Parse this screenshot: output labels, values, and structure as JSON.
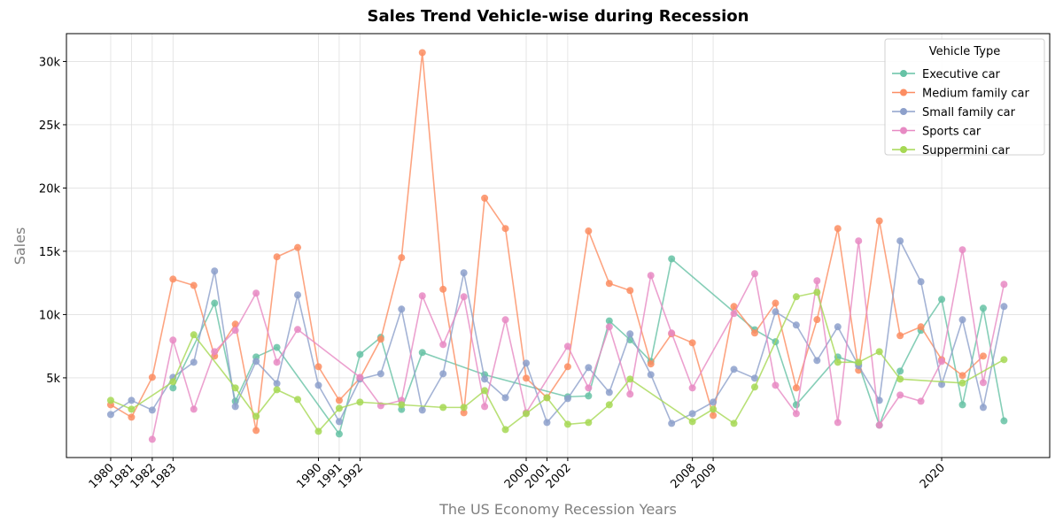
{
  "chart_data": {
    "type": "line",
    "title": "Sales Trend Vehicle-wise during Recession",
    "x_label": "The US Economy Recession Years",
    "y_label": "Sales",
    "xlim": [
      1977.87,
      2025.2
    ],
    "ylim": [
      -1300,
      32200
    ],
    "xticks": [
      1980,
      1981,
      1982,
      1983,
      1990,
      1991,
      1992,
      2000,
      2001,
      2002,
      2008,
      2009,
      2020
    ],
    "yticks": [
      {
        "value": 5000,
        "label": "5k"
      },
      {
        "value": 10000,
        "label": "10k"
      },
      {
        "value": 15000,
        "label": "15k"
      },
      {
        "value": 20000,
        "label": "20k"
      },
      {
        "value": 25000,
        "label": "25k"
      },
      {
        "value": 30000,
        "label": "30k"
      }
    ],
    "grid": true,
    "legend_title": "Vehicle Type",
    "legend_position": "upper-right",
    "series": [
      {
        "name": "Executive car",
        "color": "#66c2a5",
        "x": [
          1983,
          1985,
          1986,
          1987,
          1988,
          1991,
          1992,
          1993,
          1994,
          1995,
          1998,
          2002,
          2003,
          2004,
          2005,
          2006,
          2007,
          2011,
          2012,
          2013,
          2015,
          2016,
          2017,
          2018,
          2019,
          2020,
          2021,
          2022,
          2023
        ],
        "values": [
          4200,
          10900,
          3150,
          6650,
          7400,
          560,
          6850,
          8200,
          2500,
          7000,
          5250,
          3500,
          3570,
          9500,
          8000,
          6300,
          14400,
          8800,
          7850,
          2870,
          6650,
          6100,
          1260,
          5530,
          8750,
          11200,
          2870,
          10500,
          1600
        ]
      },
      {
        "name": "Medium family car",
        "color": "#fc8d62",
        "x": [
          1980,
          1981,
          1982,
          1983,
          1984,
          1985,
          1986,
          1987,
          1988,
          1989,
          1990,
          1991,
          1992,
          1993,
          1994,
          1995,
          1996,
          1997,
          1998,
          1999,
          2000,
          2001,
          2002,
          2003,
          2004,
          2005,
          2006,
          2007,
          2008,
          2009,
          2010,
          2011,
          2012,
          2013,
          2014,
          2015,
          2016,
          2017,
          2018,
          2019,
          2020,
          2021,
          2022
        ],
        "values": [
          2870,
          1890,
          5040,
          12800,
          12300,
          6720,
          9240,
          840,
          14560,
          15300,
          5880,
          3220,
          4970,
          8050,
          14500,
          30700,
          12000,
          2240,
          19200,
          16800,
          4970,
          3430,
          5880,
          16600,
          12460,
          11900,
          6100,
          8470,
          7770,
          2030,
          10640,
          8540,
          10900,
          4200,
          9600,
          16800,
          5600,
          17400,
          8330,
          9030,
          6440,
          5180,
          6720
        ]
      },
      {
        "name": "Small family car",
        "color": "#8da0cb",
        "x": [
          1980,
          1981,
          1982,
          1983,
          1984,
          1985,
          1986,
          1987,
          1988,
          1989,
          1990,
          1991,
          1992,
          1993,
          1994,
          1995,
          1996,
          1997,
          1998,
          1999,
          2000,
          2001,
          2002,
          2003,
          2004,
          2005,
          2006,
          2007,
          2008,
          2009,
          2010,
          2011,
          2012,
          2013,
          2014,
          2015,
          2016,
          2017,
          2018,
          2019,
          2020,
          2021,
          2022,
          2023
        ],
        "values": [
          2100,
          3220,
          2450,
          5040,
          6230,
          13440,
          2730,
          6300,
          4550,
          11550,
          4410,
          1540,
          4900,
          5320,
          10430,
          2450,
          5320,
          13300,
          4900,
          3430,
          6160,
          1470,
          3360,
          5810,
          3850,
          8470,
          5250,
          1400,
          2170,
          3080,
          5670,
          4970,
          10220,
          9170,
          6370,
          9030,
          5950,
          3220,
          15820,
          12600,
          4480,
          9590,
          2660,
          10640
        ]
      },
      {
        "name": "Sports car",
        "color": "#e78ac3",
        "x": [
          1982,
          1983,
          1984,
          1985,
          1986,
          1987,
          1988,
          1989,
          1992,
          1993,
          1994,
          1995,
          1996,
          1997,
          1998,
          1999,
          2000,
          2002,
          2003,
          2004,
          2005,
          2006,
          2007,
          2008,
          2010,
          2011,
          2012,
          2013,
          2014,
          2015,
          2016,
          2017,
          2018,
          2019,
          2020,
          2021,
          2022,
          2023
        ],
        "values": [
          140,
          7980,
          2520,
          7070,
          8750,
          11690,
          6230,
          8820,
          5040,
          2800,
          3220,
          11480,
          7630,
          11410,
          2730,
          9590,
          2240,
          7490,
          4200,
          9030,
          3710,
          13090,
          8540,
          4200,
          10080,
          13230,
          4410,
          2170,
          12670,
          1470,
          15820,
          1260,
          3640,
          3150,
          6300,
          15120,
          4620,
          12390
        ]
      },
      {
        "name": "Suppermini car",
        "color": "#a6d854",
        "x": [
          1980,
          1981,
          1983,
          1984,
          1986,
          1987,
          1988,
          1989,
          1990,
          1991,
          1992,
          1994,
          1996,
          1997,
          1998,
          1999,
          2000,
          2001,
          2002,
          2003,
          2004,
          2005,
          2008,
          2009,
          2010,
          2011,
          2013,
          2014,
          2015,
          2016,
          2017,
          2018,
          2021,
          2023
        ],
        "values": [
          3220,
          2520,
          4690,
          8400,
          4200,
          1960,
          4060,
          3290,
          770,
          2590,
          3080,
          2870,
          2660,
          2660,
          3990,
          910,
          2170,
          3430,
          1330,
          1470,
          2870,
          4900,
          1540,
          2520,
          1400,
          4270,
          11410,
          11760,
          6230,
          6230,
          7070,
          4900,
          4590,
          6440
        ]
      }
    ]
  }
}
